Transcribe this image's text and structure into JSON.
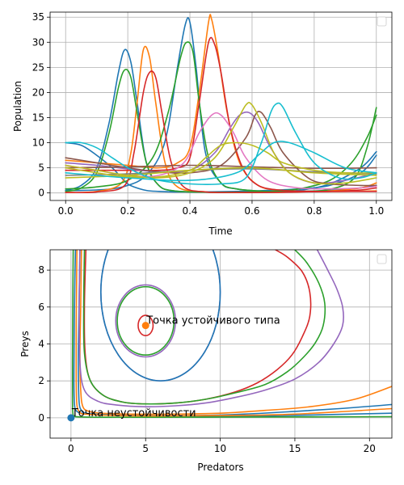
{
  "colors": [
    "#1f77b4",
    "#ff7f0e",
    "#2ca02c",
    "#d62728",
    "#9467bd",
    "#8c564b",
    "#e377c2",
    "#7f7f7f",
    "#bcbd22",
    "#17becf"
  ],
  "chart_data": [
    {
      "type": "line",
      "title": "",
      "xlabel": "Time",
      "ylabel": "Population",
      "xlim": [
        -0.05,
        1.05
      ],
      "ylim": [
        -1.5,
        36
      ],
      "xticks": [
        "0.0",
        "0.2",
        "0.4",
        "0.6",
        "0.8",
        "1.0"
      ],
      "xtick_values": [
        0,
        0.2,
        0.4,
        0.6,
        0.8,
        1.0
      ],
      "yticks": [
        "0",
        "5",
        "10",
        "15",
        "20",
        "25",
        "30",
        "35"
      ],
      "ytick_values": [
        0,
        5,
        10,
        15,
        20,
        25,
        30,
        35
      ],
      "grid": true,
      "legend": "upper right (empty)",
      "series": [
        {
          "color": "#1f77b4",
          "x": [
            0,
            0.05,
            0.1,
            0.14,
            0.17,
            0.19,
            0.21,
            0.23,
            0.26,
            0.3,
            0.35,
            0.45,
            0.55,
            0.65,
            0.75,
            0.85,
            0.95,
            1.0
          ],
          "y": [
            0.5,
            1.5,
            5,
            14,
            24,
            28.5,
            26,
            18,
            6,
            1.5,
            0.4,
            0.15,
            0.1,
            0.2,
            0.5,
            1.8,
            5,
            8.2
          ]
        },
        {
          "color": "#1f77b4",
          "x": [
            0,
            0.05,
            0.1,
            0.15,
            0.18,
            0.2,
            0.22,
            0.26,
            0.3,
            0.35,
            0.45,
            0.55,
            0.65,
            0.75,
            0.85,
            0.95,
            1.0
          ],
          "y": [
            10,
            9.5,
            7.5,
            5,
            3,
            1.8,
            1.2,
            0.5,
            0.3,
            0.2,
            0.2,
            0.3,
            0.5,
            0.8,
            1.5,
            4,
            7.5
          ]
        },
        {
          "color": "#1f77b4",
          "x": [
            0,
            0.05,
            0.1,
            0.15,
            0.2,
            0.25,
            0.3,
            0.33,
            0.36,
            0.385,
            0.4,
            0.42,
            0.45,
            0.5,
            0.55,
            0.65,
            0.75,
            0.85,
            0.95,
            1.0
          ],
          "y": [
            0.5,
            0.5,
            0.6,
            0.8,
            1.5,
            3,
            7,
            13,
            25,
            33.5,
            34,
            25,
            8,
            2,
            0.8,
            0.3,
            0.3,
            0.5,
            1,
            1.5
          ]
        },
        {
          "color": "#ff7f0e",
          "x": [
            0,
            0.1,
            0.18,
            0.21,
            0.23,
            0.25,
            0.27,
            0.29,
            0.32,
            0.36,
            0.45,
            0.55,
            0.65,
            0.75,
            0.85,
            0.95,
            1.0
          ],
          "y": [
            0.1,
            0.3,
            2,
            8,
            18,
            28.5,
            27,
            18,
            6,
            1.2,
            0.2,
            0.1,
            0.1,
            0.2,
            0.4,
            1,
            2
          ]
        },
        {
          "color": "#ff7f0e",
          "x": [
            0,
            0.1,
            0.2,
            0.3,
            0.36,
            0.4,
            0.43,
            0.46,
            0.47,
            0.49,
            0.52,
            0.56,
            0.62,
            0.7,
            0.8,
            0.9,
            1.0
          ],
          "y": [
            6.5,
            6,
            5.5,
            5,
            6,
            9,
            20,
            34,
            34.5,
            28,
            16,
            6,
            1.5,
            0.5,
            0.3,
            0.3,
            0.4
          ]
        },
        {
          "color": "#2ca02c",
          "x": [
            0,
            0.05,
            0.1,
            0.14,
            0.17,
            0.19,
            0.21,
            0.23,
            0.26,
            0.3,
            0.35,
            0.45,
            0.55,
            0.65,
            0.75,
            0.85,
            0.92,
            0.97,
            1.0
          ],
          "y": [
            0.3,
            1,
            4,
            12,
            21,
            24.5,
            23,
            16,
            6,
            1.5,
            0.4,
            0.15,
            0.15,
            0.3,
            0.8,
            2.5,
            6,
            11,
            15.5
          ]
        },
        {
          "color": "#2ca02c",
          "x": [
            0,
            0.1,
            0.2,
            0.28,
            0.33,
            0.37,
            0.39,
            0.41,
            0.43,
            0.46,
            0.5,
            0.55,
            0.65,
            0.75,
            0.85,
            0.93,
            0.97,
            1.0
          ],
          "y": [
            0.8,
            1.2,
            2.5,
            7,
            16,
            27,
            30,
            28,
            18,
            7,
            2,
            0.8,
            0.3,
            0.3,
            0.7,
            3,
            9,
            17
          ]
        },
        {
          "color": "#d62728",
          "x": [
            0,
            0.1,
            0.19,
            0.22,
            0.25,
            0.27,
            0.29,
            0.31,
            0.34,
            0.38,
            0.45,
            0.55,
            0.65,
            0.75,
            0.85,
            0.95,
            1.0
          ],
          "y": [
            0.1,
            0.2,
            1.5,
            8,
            20,
            24,
            23,
            16,
            6,
            1.2,
            0.2,
            0.1,
            0.1,
            0.2,
            0.3,
            0.6,
            1
          ]
        },
        {
          "color": "#d62728",
          "x": [
            0,
            0.1,
            0.2,
            0.3,
            0.36,
            0.4,
            0.43,
            0.46,
            0.48,
            0.5,
            0.53,
            0.57,
            0.62,
            0.7,
            0.8,
            0.9,
            1.0
          ],
          "y": [
            4.5,
            4.5,
            4.5,
            4.5,
            5,
            7,
            18,
            30,
            29.5,
            24,
            13,
            5,
            1.5,
            0.5,
            0.3,
            0.3,
            0.3
          ]
        },
        {
          "color": "#9467bd",
          "x": [
            0,
            0.1,
            0.2,
            0.3,
            0.4,
            0.48,
            0.53,
            0.56,
            0.59,
            0.62,
            0.66,
            0.72,
            0.8,
            0.9,
            1.0
          ],
          "y": [
            6,
            5.5,
            4.8,
            4.2,
            4.5,
            8,
            13,
            15.5,
            16,
            14,
            9,
            4,
            2,
            2.5,
            4
          ]
        },
        {
          "color": "#8c564b",
          "x": [
            0,
            0.1,
            0.2,
            0.3,
            0.4,
            0.5,
            0.58,
            0.61,
            0.63,
            0.66,
            0.7,
            0.78,
            0.85,
            0.95,
            1.0
          ],
          "y": [
            7,
            6,
            5,
            4.2,
            4,
            5.5,
            11,
            15.5,
            16,
            13,
            8,
            3,
            1.8,
            1.5,
            1.5
          ]
        },
        {
          "color": "#8c564b",
          "x": [
            0,
            0.2,
            0.4,
            0.6,
            0.8,
            1.0
          ],
          "y": [
            5,
            5.2,
            5.5,
            5.2,
            4.9,
            5
          ]
        },
        {
          "color": "#e377c2",
          "x": [
            0,
            0.1,
            0.2,
            0.3,
            0.38,
            0.43,
            0.47,
            0.5,
            0.54,
            0.58,
            0.65,
            0.75,
            0.85,
            0.95,
            1.0
          ],
          "y": [
            5.5,
            4.5,
            3.5,
            3.5,
            6,
            12,
            15.5,
            15.5,
            12,
            7,
            2.5,
            1,
            0.8,
            1,
            1.3
          ]
        },
        {
          "color": "#7f7f7f",
          "x": [
            0,
            0.2,
            0.4,
            0.6,
            0.8,
            1.0
          ],
          "y": [
            3.5,
            3.8,
            4.5,
            4.8,
            4.2,
            3.8
          ]
        },
        {
          "color": "#bcbd22",
          "x": [
            0,
            0.1,
            0.2,
            0.3,
            0.4,
            0.48,
            0.54,
            0.58,
            0.6,
            0.63,
            0.67,
            0.72,
            0.8,
            0.9,
            1.0
          ],
          "y": [
            5.5,
            4.5,
            3.5,
            3,
            4,
            7,
            13,
            17.5,
            17.5,
            14,
            8,
            4,
            2,
            2,
            3
          ]
        },
        {
          "color": "#bcbd22",
          "x": [
            0,
            0.1,
            0.2,
            0.3,
            0.4,
            0.45,
            0.5,
            0.55,
            0.6,
            0.65,
            0.7,
            0.8,
            0.9,
            1.0
          ],
          "y": [
            5,
            4,
            3.2,
            3.2,
            4.5,
            7,
            9.5,
            10,
            9.5,
            8,
            6,
            4.5,
            4,
            4
          ]
        },
        {
          "color": "#bcbd22",
          "x": [
            0,
            0.2,
            0.4,
            0.6,
            0.8,
            1.0
          ],
          "y": [
            3,
            3.5,
            4.5,
            5,
            4,
            3.5
          ]
        },
        {
          "color": "#17becf",
          "x": [
            0,
            0.05,
            0.1,
            0.15,
            0.2,
            0.25,
            0.3,
            0.4,
            0.5,
            0.58,
            0.63,
            0.66,
            0.68,
            0.7,
            0.74,
            0.8,
            0.88,
            0.95,
            1.0
          ],
          "y": [
            10,
            10,
            9,
            7,
            5,
            3.5,
            2.5,
            1.8,
            1.8,
            3,
            10,
            16,
            17.8,
            17,
            12,
            6,
            3,
            3,
            4
          ]
        },
        {
          "color": "#17becf",
          "x": [
            0,
            0.2,
            0.4,
            0.55,
            0.62,
            0.67,
            0.72,
            0.8,
            0.9,
            1.0
          ],
          "y": [
            4,
            3,
            2.5,
            4,
            7.5,
            10,
            10,
            8,
            5,
            4
          ]
        }
      ]
    },
    {
      "type": "line",
      "title": "",
      "xlabel": "Predators",
      "ylabel": "Preys",
      "xlim": [
        -1.4,
        21.5
      ],
      "ylim": [
        -1.1,
        9.1
      ],
      "xticks": [
        "0",
        "5",
        "10",
        "15",
        "20"
      ],
      "xtick_values": [
        0,
        5,
        10,
        15,
        20
      ],
      "yticks": [
        "0",
        "2",
        "4",
        "6",
        "8"
      ],
      "ytick_values": [
        0,
        2,
        4,
        6,
        8
      ],
      "grid": true,
      "legend": "upper right (empty)",
      "points": [
        {
          "label": "Точка неустойчивости",
          "x": 0,
          "y": 0,
          "color": "#1f77b4"
        },
        {
          "label": "Точка устойчивого типа",
          "x": 5,
          "y": 5,
          "color": "#ff7f0e"
        }
      ],
      "orbits": [
        {
          "color": "#d62728",
          "cx": 5,
          "cy": 5,
          "rx": 0.5,
          "ry": 0.55
        },
        {
          "color": "#2ca02c",
          "cx": 5,
          "cy": 5.25,
          "rx": 1.9,
          "ry": 1.85
        },
        {
          "color": "#9467bd",
          "cx": 5,
          "cy": 5.25,
          "rx": 2.0,
          "ry": 1.95
        },
        {
          "color": "#9467bd",
          "cx": 6.0,
          "cy": 6.8,
          "rx": 4.0,
          "ry": 4.8
        },
        {
          "color": "#1f77b4",
          "cx": 6.0,
          "cy": 6.8,
          "rx": 4.0,
          "ry": 4.8
        }
      ],
      "series": [
        {
          "color": "#1f77b4",
          "x": [
            0.3,
            0.25,
            0.22,
            0.2,
            0.2,
            0.25,
            0.4,
            0.7,
            1.5,
            3,
            5,
            8,
            12,
            16,
            21.5
          ],
          "y": [
            9.1,
            7,
            5,
            3,
            1.5,
            0.6,
            0.35,
            0.25,
            0.2,
            0.15,
            0.12,
            0.1,
            0.1,
            0.15,
            0.25
          ]
        },
        {
          "color": "#1f77b4",
          "x": [
            0.6,
            0.55,
            0.5,
            0.5,
            0.55,
            0.7,
            1,
            2,
            4,
            7,
            10,
            14,
            18,
            21.5
          ],
          "y": [
            9.1,
            6.5,
            4,
            2,
            0.8,
            0.4,
            0.25,
            0.15,
            0.12,
            0.12,
            0.15,
            0.3,
            0.5,
            0.72
          ]
        },
        {
          "color": "#ff7f0e",
          "x": [
            0.7,
            0.65,
            0.6,
            0.65,
            0.8,
            1.2,
            2,
            4,
            7,
            10,
            13,
            16,
            19,
            21.5
          ],
          "y": [
            9.1,
            6,
            3.5,
            1.5,
            0.6,
            0.35,
            0.25,
            0.2,
            0.2,
            0.25,
            0.4,
            0.6,
            1.0,
            1.7
          ]
        },
        {
          "color": "#ff7f0e",
          "x": [
            0.4,
            0.35,
            0.35,
            0.4,
            0.6,
            1,
            3,
            6,
            10,
            15,
            21.5
          ],
          "y": [
            9.1,
            5,
            2,
            0.7,
            0.3,
            0.2,
            0.12,
            0.1,
            0.12,
            0.2,
            0.5
          ]
        },
        {
          "color": "#2ca02c",
          "x": [
            0.15,
            0.12,
            0.1,
            0.1,
            0.12,
            0.2,
            0.5,
            2,
            5,
            10,
            21.5
          ],
          "y": [
            9.1,
            6,
            3,
            1,
            0.3,
            0.1,
            0.05,
            0.03,
            0.03,
            0.04,
            0.06
          ]
        },
        {
          "color": "#d62728",
          "x": [
            1.0,
            0.9,
            0.95,
            1.3,
            2.2,
            3.5,
            5,
            7,
            9,
            11,
            12.5,
            13.8,
            14.8,
            15.5,
            16.0,
            16.0,
            15.5,
            14.5,
            13.7
          ],
          "y": [
            9.1,
            6,
            3.5,
            2.0,
            1.2,
            0.85,
            0.75,
            0.8,
            1.0,
            1.4,
            1.9,
            2.6,
            3.4,
            4.4,
            5.5,
            6.8,
            7.9,
            8.7,
            9.1
          ]
        },
        {
          "color": "#2ca02c",
          "x": [
            0.9,
            0.85,
            0.9,
            1.3,
            2.2,
            3.5,
            5,
            7,
            9,
            11,
            13,
            14.5,
            15.6,
            16.4,
            16.9,
            17.0,
            16.6,
            15.8,
            15.0
          ],
          "y": [
            9.1,
            6,
            3.5,
            2.0,
            1.2,
            0.85,
            0.75,
            0.8,
            1.0,
            1.35,
            1.8,
            2.5,
            3.3,
            4.1,
            5.0,
            6.2,
            7.3,
            8.4,
            9.1
          ]
        },
        {
          "color": "#9467bd",
          "x": [
            0.6,
            0.55,
            0.6,
            0.9,
            1.8,
            3,
            5,
            7,
            9,
            11,
            13,
            15,
            16.6,
            17.6,
            18.2,
            18.2,
            17.8,
            17.2,
            16.5
          ],
          "y": [
            9.1,
            6,
            3,
            1.5,
            0.9,
            0.7,
            0.6,
            0.65,
            0.8,
            1.1,
            1.5,
            2.1,
            3.0,
            4.0,
            5.0,
            6.0,
            7.0,
            8.0,
            9.1
          ]
        }
      ]
    }
  ]
}
